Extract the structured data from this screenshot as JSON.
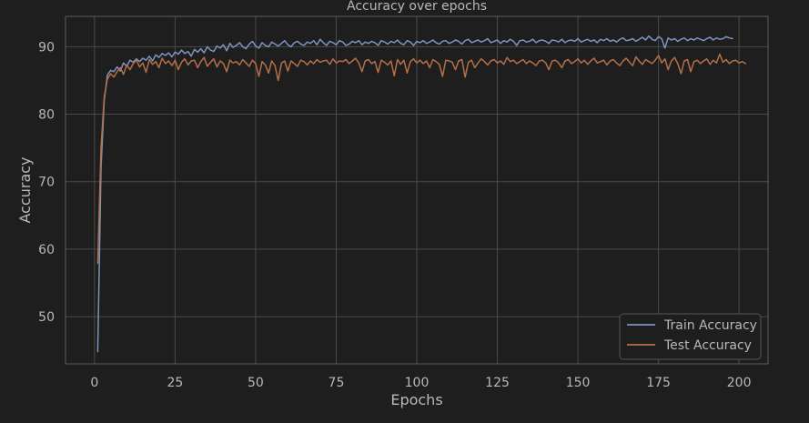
{
  "colors": {
    "background": "#1e1e1e",
    "plot_background": "#1e1e1e",
    "grid": "#4a4a4a",
    "axis_frame": "#5c5c5c",
    "text": "#b8b8b8",
    "train": "#7d94be",
    "test": "#b56f48",
    "legend_bg": "#1e1e1e",
    "legend_border": "#555555"
  },
  "chart_data": {
    "type": "line",
    "title": "Accuracy over epochs",
    "xlabel": "Epochs",
    "ylabel": "Accuracy",
    "xlim": [
      -9,
      209
    ],
    "ylim": [
      43,
      94.5
    ],
    "xticks": [
      0,
      25,
      50,
      75,
      100,
      125,
      150,
      175,
      200
    ],
    "xtick_labels": [
      "0",
      "25",
      "50",
      "75",
      "100",
      "125",
      "150",
      "175",
      "200"
    ],
    "yticks": [
      50,
      60,
      70,
      80,
      90
    ],
    "ytick_labels": [
      "50",
      "60",
      "70",
      "80",
      "90"
    ],
    "grid": true,
    "legend_position": "bottom-right",
    "x_start": 1,
    "series": [
      {
        "name": "Train Accuracy",
        "color": "#7d94be",
        "values": [
          44.8,
          72.0,
          82.0,
          85.8,
          86.5,
          86.3,
          87.0,
          86.4,
          87.6,
          87.1,
          88.0,
          87.7,
          88.2,
          87.8,
          88.3,
          88.0,
          88.6,
          87.9,
          88.8,
          88.4,
          89.0,
          88.7,
          89.1,
          88.5,
          89.2,
          88.9,
          89.5,
          89.0,
          89.3,
          88.6,
          89.6,
          89.2,
          89.7,
          89.1,
          90.0,
          89.5,
          89.3,
          90.1,
          89.8,
          90.3,
          89.4,
          90.5,
          89.9,
          90.2,
          90.6,
          90.0,
          89.7,
          90.4,
          90.8,
          90.1,
          89.8,
          90.6,
          90.2,
          90.0,
          90.7,
          90.4,
          90.1,
          90.5,
          90.9,
          90.3,
          90.0,
          90.6,
          90.8,
          90.4,
          90.2,
          90.7,
          90.5,
          90.9,
          90.3,
          91.1,
          90.6,
          90.2,
          90.8,
          90.6,
          90.3,
          90.9,
          90.7,
          90.2,
          90.4,
          90.8,
          90.6,
          90.9,
          90.3,
          90.7,
          90.5,
          90.8,
          90.6,
          90.2,
          90.9,
          90.7,
          90.4,
          90.8,
          90.6,
          91.0,
          90.5,
          90.3,
          90.9,
          90.7,
          90.2,
          90.8,
          90.6,
          90.9,
          90.5,
          90.7,
          91.0,
          90.6,
          90.4,
          90.8,
          90.9,
          90.5,
          90.7,
          91.0,
          90.8,
          90.4,
          90.9,
          91.1,
          90.6,
          90.8,
          91.0,
          90.7,
          90.9,
          91.2,
          90.6,
          90.8,
          91.0,
          90.5,
          90.9,
          90.7,
          91.1,
          90.8,
          90.2,
          90.9,
          91.0,
          90.7,
          90.8,
          91.1,
          90.6,
          90.9,
          91.0,
          90.8,
          90.5,
          91.0,
          90.9,
          90.7,
          91.1,
          90.6,
          90.9,
          91.0,
          90.8,
          91.2,
          90.7,
          90.9,
          91.1,
          90.8,
          91.0,
          90.6,
          91.1,
          90.9,
          91.2,
          90.8,
          91.0,
          90.7,
          91.1,
          91.3,
          90.9,
          91.0,
          91.2,
          90.8,
          91.1,
          91.4,
          91.0,
          91.6,
          91.1,
          90.9,
          91.5,
          91.2,
          89.8,
          91.3,
          91.0,
          91.2,
          90.8,
          91.1,
          91.3,
          90.9,
          91.2,
          91.0,
          91.3,
          91.1,
          90.9,
          91.2,
          91.4,
          91.0,
          91.3,
          91.1,
          91.2,
          91.5,
          91.3,
          91.2
        ]
      },
      {
        "name": "Test Accuracy",
        "color": "#b56f48",
        "values": [
          57.9,
          75.0,
          82.5,
          85.2,
          86.0,
          85.5,
          86.3,
          86.9,
          85.9,
          87.3,
          86.6,
          87.5,
          88.0,
          87.0,
          87.6,
          86.2,
          88.1,
          87.4,
          87.8,
          86.9,
          88.3,
          87.5,
          87.9,
          87.2,
          88.0,
          86.6,
          87.7,
          88.2,
          87.3,
          87.9,
          88.0,
          86.9,
          87.8,
          88.4,
          87.1,
          87.7,
          88.2,
          87.0,
          87.9,
          87.5,
          86.3,
          88.0,
          87.6,
          87.8,
          87.3,
          88.1,
          87.6,
          87.1,
          88.0,
          87.5,
          85.6,
          87.8,
          87.3,
          86.1,
          87.9,
          87.2,
          85.0,
          87.6,
          87.9,
          86.4,
          87.9,
          87.5,
          87.1,
          88.0,
          87.8,
          87.3,
          87.9,
          87.5,
          88.1,
          87.7,
          87.9,
          88.0,
          87.4,
          88.2,
          87.6,
          87.9,
          87.8,
          88.1,
          87.5,
          87.9,
          88.3,
          87.6,
          86.3,
          87.9,
          88.1,
          87.5,
          87.8,
          86.2,
          88.0,
          87.7,
          87.3,
          87.9,
          85.7,
          88.1,
          87.4,
          88.0,
          86.1,
          87.8,
          88.2,
          87.6,
          88.0,
          87.5,
          87.9,
          86.9,
          88.1,
          87.8,
          87.4,
          85.6,
          88.0,
          87.9,
          87.7,
          86.6,
          87.9,
          88.1,
          85.5,
          87.7,
          88.0,
          86.9,
          87.6,
          88.2,
          87.8,
          87.3,
          87.9,
          88.1,
          87.6,
          87.9,
          87.4,
          88.4,
          87.8,
          88.0,
          87.5,
          87.8,
          88.1,
          87.5,
          87.9,
          87.6,
          87.2,
          87.9,
          88.0,
          87.6,
          86.6,
          87.9,
          88.0,
          87.6,
          86.9,
          87.9,
          88.1,
          87.5,
          87.8,
          88.2,
          87.6,
          88.0,
          87.4,
          87.9,
          88.3,
          87.6,
          87.8,
          88.0,
          87.3,
          87.9,
          88.1,
          87.6,
          87.2,
          87.9,
          88.3,
          87.7,
          87.2,
          88.5,
          87.9,
          87.4,
          88.1,
          87.8,
          87.5,
          88.0,
          88.7,
          87.6,
          88.2,
          86.6,
          87.9,
          88.4,
          87.5,
          86.0,
          87.9,
          88.1,
          86.3,
          87.8,
          88.0,
          87.5,
          87.9,
          88.2,
          87.4,
          88.0,
          87.6,
          88.9,
          87.7,
          88.1,
          87.5,
          87.9,
          88.0,
          87.6,
          87.8,
          87.5
        ]
      }
    ]
  }
}
